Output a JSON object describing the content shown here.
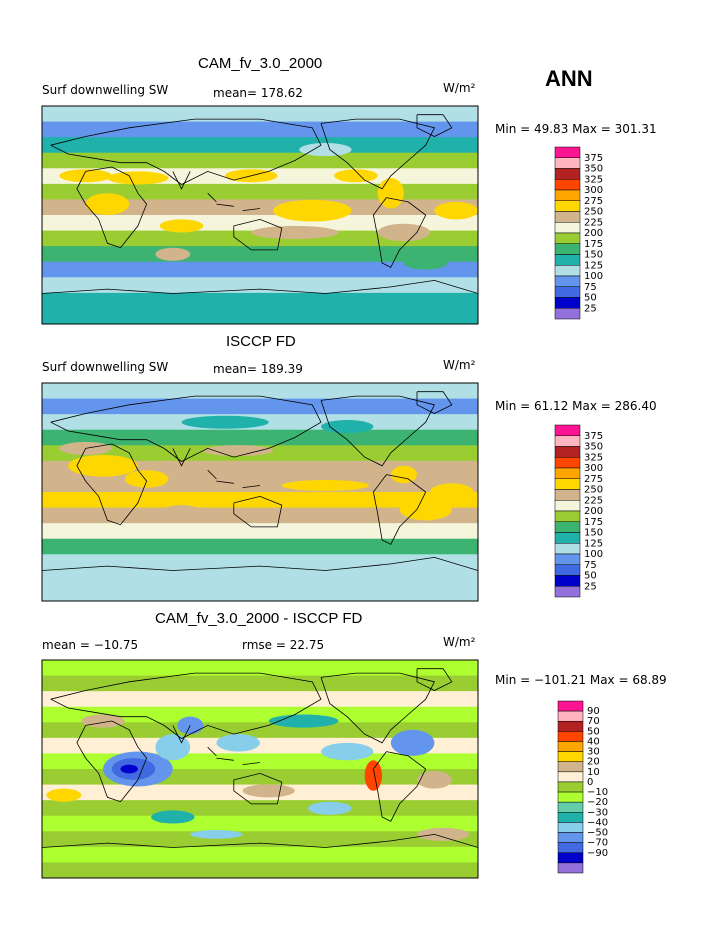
{
  "season": "ANN",
  "palette_fields": [
    "#9370db",
    "#0000cd",
    "#4169e1",
    "#6495ed",
    "#b0e0e6",
    "#20b2aa",
    "#3cb371",
    "#9acd32",
    "#f5f5dc",
    "#d2b48c",
    "#ffd700",
    "#ffa500",
    "#ff4500",
    "#b22222",
    "#ffb6c1",
    "#ff1493"
  ],
  "palette_diff": [
    "#9370db",
    "#0000cd",
    "#4169e1",
    "#6495ed",
    "#87ceeb",
    "#20b2aa",
    "#66cdaa",
    "#adff2f",
    "#9acd32",
    "#ffefd5",
    "#d2b48c",
    "#ffd700",
    "#ffa500",
    "#ff4500",
    "#b22222",
    "#ffb6c1",
    "#ff1493"
  ],
  "coast_color": "#000000",
  "chart_data": [
    {
      "type": "heatmap",
      "title": "CAM_fv_3.0_2000",
      "field_label": "Surf downwelling SW",
      "mean_text": "mean= 178.62",
      "units": "W/m²",
      "minmax_text": "Min =  49.83 Max = 301.31",
      "legend_levels": [
        "25",
        "50",
        "75",
        "100",
        "125",
        "150",
        "175",
        "200",
        "225",
        "250",
        "275",
        "300",
        "325",
        "350",
        "375"
      ],
      "map": "model"
    },
    {
      "type": "heatmap",
      "title": "ISCCP FD",
      "field_label": "Surf downwelling SW",
      "mean_text": "mean= 189.39",
      "units": "W/m²",
      "minmax_text": "Min =  61.12 Max = 286.40",
      "legend_levels": [
        "25",
        "50",
        "75",
        "100",
        "125",
        "150",
        "175",
        "200",
        "225",
        "250",
        "275",
        "300",
        "325",
        "350",
        "375"
      ],
      "map": "obs"
    },
    {
      "type": "heatmap",
      "title": "CAM_fv_3.0_2000 - ISCCP FD",
      "field_label": "mean = −10.75",
      "mean_text": "rmse =  22.75",
      "units": "W/m²",
      "minmax_text": "Min = −101.21 Max =  68.89",
      "legend_levels": [
        "−90",
        "−70",
        "−50",
        "−40",
        "−30",
        "−20",
        "−10",
        "0",
        "10",
        "20",
        "30",
        "40",
        "50",
        "70",
        "90"
      ],
      "map": "diff"
    }
  ]
}
